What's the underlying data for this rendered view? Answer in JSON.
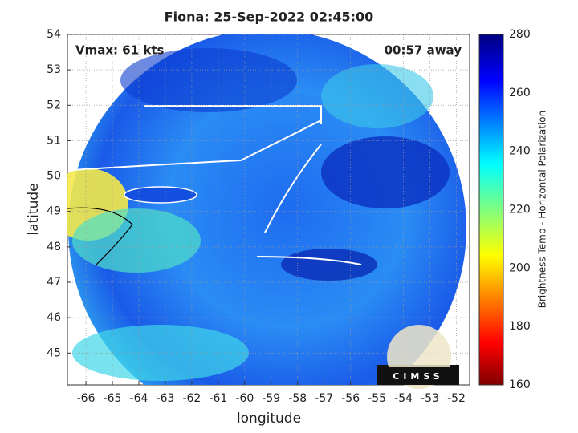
{
  "title": "Fiona: 25-Sep-2022 02:45:00",
  "annotations": {
    "vmax": "Vmax: 61 kts",
    "away": "00:57 away"
  },
  "x_axis": {
    "label": "longitude",
    "lim": [
      -66.7,
      -51.5
    ],
    "ticks": [
      -66,
      -65,
      -64,
      -63,
      -62,
      -61,
      -60,
      -59,
      -58,
      -57,
      -56,
      -55,
      -54,
      -53,
      -52
    ]
  },
  "y_axis": {
    "label": "latitude",
    "lim": [
      44.1,
      54
    ],
    "ticks": [
      45,
      46,
      47,
      48,
      49,
      50,
      51,
      52,
      53,
      54
    ]
  },
  "colorbar": {
    "label": "Brightness Temp - Horizontal Polarization",
    "lim": [
      160,
      280
    ],
    "ticks": [
      160,
      180,
      200,
      220,
      240,
      260,
      280
    ]
  },
  "logo": "CIMSS"
}
